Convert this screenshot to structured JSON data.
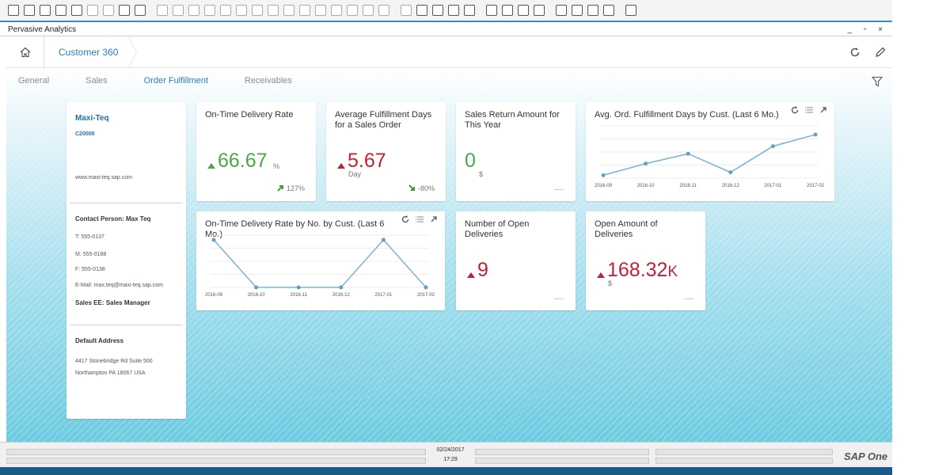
{
  "window": {
    "title": "Pervasive Analytics"
  },
  "header": {
    "breadcrumb": "Customer 360"
  },
  "tabs": [
    {
      "label": "General"
    },
    {
      "label": "Sales"
    },
    {
      "label": "Order Fulfillment",
      "active": true
    },
    {
      "label": "Receivables"
    }
  ],
  "customer": {
    "name": "Maxi-Teq",
    "code": "C20000",
    "website": "www.maxi-teq.sap.com",
    "contact_heading": "Contact Person: Max Teq",
    "phone": "T: 555-0137",
    "mobile": "M: 555-0188",
    "fax": "F: 555-0138",
    "email": "E-Mail: max.teq@maxi-teq.sap.com",
    "sales_employee": "Sales EE: Sales Manager",
    "address_heading": "Default Address",
    "address_line1": "4417 Stonebridge Rd Suite 500",
    "address_line2": "Northampton PA  18067 USA"
  },
  "kpis": {
    "on_time": {
      "title": "On-Time Delivery Rate",
      "value": "66.67",
      "unit": "%",
      "change": "127%"
    },
    "avg_days": {
      "title": "Average Fulfillment Days for a Sales Order",
      "value": "5.67",
      "unit": "Day",
      "change": "-80%"
    },
    "returns": {
      "title": "Sales Return Amount for This Year",
      "value": "0",
      "unit": "$"
    },
    "open_deliveries": {
      "title": "Number of Open Deliveries",
      "value": "9"
    },
    "open_amount": {
      "title": "Open Amount of Deliveries",
      "value": "168.32",
      "suffix": "K",
      "unit": "$"
    }
  },
  "chart_titles": {
    "avg_by_cust": "Avg. Ord. Fulfillment Days by Cust. (Last 6 Mo.)",
    "rate_by_cust": "On-Time Delivery Rate by No. by Cust. (Last 6 Mo.)"
  },
  "chart_data": [
    {
      "type": "line",
      "title": "Avg. Ord. Fulfillment Days by Cust. (Last 6 Mo.)",
      "categories": [
        "2016-09",
        "2016-10",
        "2016-11",
        "2016-12",
        "2017-01",
        "2017-02"
      ],
      "values": [
        0.5,
        2.5,
        4.2,
        1.0,
        5.5,
        7.5
      ],
      "ylim": [
        0,
        9
      ],
      "grid": true
    },
    {
      "type": "line",
      "title": "On-Time Delivery Rate by No. by Cust. (Last 6 Mo.)",
      "categories": [
        "2016-09",
        "2016-10",
        "2016-11",
        "2016-12",
        "2017-01",
        "2017-02"
      ],
      "values": [
        100,
        0,
        0,
        0,
        100,
        0
      ],
      "ylim": [
        0,
        110
      ],
      "grid": true
    }
  ],
  "status": {
    "date": "02/24/2017",
    "time": "17:29"
  },
  "colors": {
    "accent": "#2a7fb8",
    "positive": "#4aa845",
    "negative": "#c0213a",
    "line": "#7fb6d6"
  }
}
